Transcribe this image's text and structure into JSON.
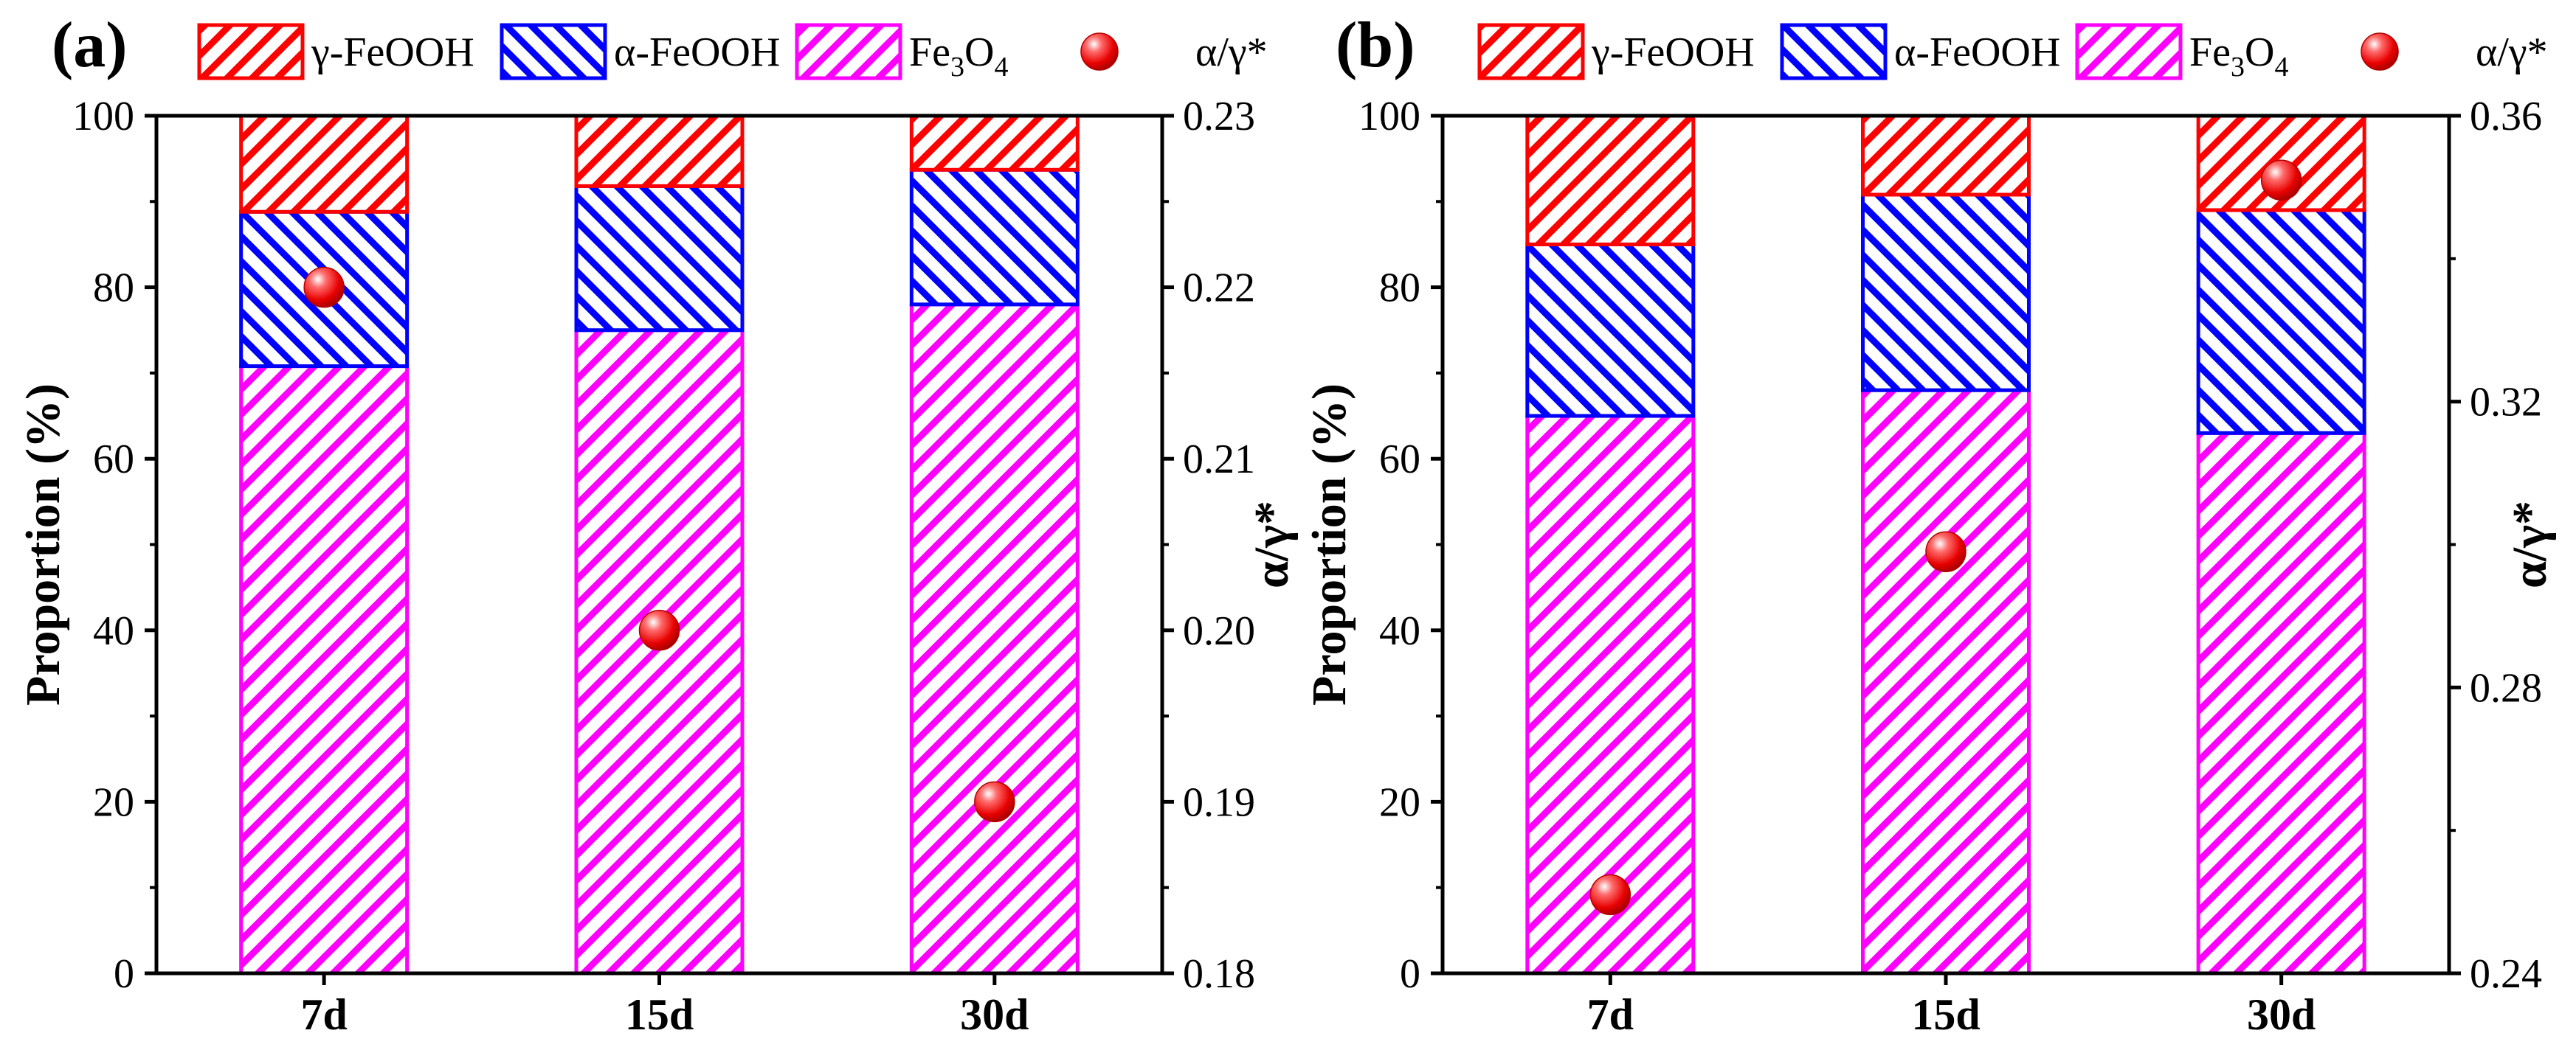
{
  "chart_data": [
    {
      "type": "bar",
      "stacked": true,
      "panel_label": "(a)",
      "categories": [
        "7d",
        "15d",
        "30d"
      ],
      "series": [
        {
          "name": "Fe3O4",
          "display": [
            "Fe",
            "3",
            "O",
            "4"
          ],
          "color": "#ff00ff",
          "values": [
            70.8,
            75.0,
            78.0
          ]
        },
        {
          "name": "α-FeOOH",
          "color": "#0000ff",
          "values": [
            18.0,
            16.8,
            15.7
          ]
        },
        {
          "name": "γ-FeOOH",
          "color": "#ff0000",
          "values": [
            11.2,
            8.2,
            6.3
          ]
        }
      ],
      "ratio_series": {
        "name": "α/γ*",
        "values": [
          0.22,
          0.2,
          0.19
        ]
      },
      "ylabel": "Proportion (%)",
      "ylim": [
        0,
        100
      ],
      "yticks": [
        "0",
        "20",
        "40",
        "60",
        "80",
        "100"
      ],
      "y2label": "α/γ*",
      "y2lim": [
        0.18,
        0.23
      ],
      "y2ticks": [
        "0.18",
        "0.19",
        "0.20",
        "0.21",
        "0.22",
        "0.23"
      ]
    },
    {
      "type": "bar",
      "stacked": true,
      "panel_label": "(b)",
      "categories": [
        "7d",
        "15d",
        "30d"
      ],
      "series": [
        {
          "name": "Fe3O4",
          "display": [
            "Fe",
            "3",
            "O",
            "4"
          ],
          "color": "#ff00ff",
          "values": [
            65.0,
            68.0,
            63.0
          ]
        },
        {
          "name": "α-FeOOH",
          "color": "#0000ff",
          "values": [
            20.0,
            22.8,
            26.0
          ]
        },
        {
          "name": "γ-FeOOH",
          "color": "#ff0000",
          "values": [
            15.0,
            9.2,
            11.0
          ]
        }
      ],
      "ratio_series": {
        "name": "α/γ*",
        "values": [
          0.251,
          0.299,
          0.351
        ]
      },
      "ylabel": "Proportion (%)",
      "ylim": [
        0,
        100
      ],
      "yticks": [
        "0",
        "20",
        "40",
        "60",
        "80",
        "100"
      ],
      "y2label": "α/γ*",
      "y2lim": [
        0.24,
        0.36
      ],
      "y2ticks": [
        "0.24",
        "0.28",
        "0.32",
        "0.36"
      ]
    }
  ]
}
